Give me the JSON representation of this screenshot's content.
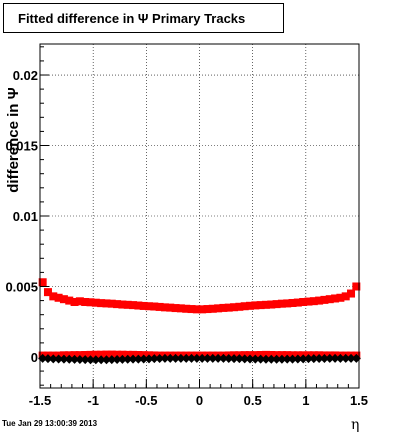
{
  "title": "Fitted difference in  Ψ   Primary Tracks",
  "footer": "Tue Jan 29 13:00:39 2013",
  "chart_data": {
    "type": "scatter",
    "title": "Fitted difference in Ψ Primary Tracks",
    "xlabel": "η",
    "ylabel": "difference in Ψ",
    "xlim": [
      -1.5,
      1.5
    ],
    "ylim": [
      -0.0022,
      0.0222
    ],
    "x_ticks": [
      -1.5,
      -1,
      -0.5,
      0,
      0.5,
      1,
      1.5
    ],
    "x_tick_labels": [
      "-1.5",
      "-1",
      "-0.5",
      "0",
      "0.5",
      "1",
      "1.5"
    ],
    "y_ticks": [
      0,
      0.005,
      0.01,
      0.015,
      0.02
    ],
    "y_tick_labels": [
      "0",
      "0.005",
      "0.01",
      "0.015",
      "0.02"
    ],
    "grid": true,
    "series": [
      {
        "color": "#ff0000",
        "marker": "square",
        "x": [
          -1.475,
          -1.425,
          -1.375,
          -1.325,
          -1.275,
          -1.225,
          -1.175,
          -1.125,
          -1.075,
          -1.025,
          -0.975,
          -0.925,
          -0.875,
          -0.825,
          -0.775,
          -0.725,
          -0.675,
          -0.625,
          -0.575,
          -0.525,
          -0.475,
          -0.425,
          -0.375,
          -0.325,
          -0.275,
          -0.225,
          -0.175,
          -0.125,
          -0.075,
          -0.025,
          0.025,
          0.075,
          0.125,
          0.175,
          0.225,
          0.275,
          0.325,
          0.375,
          0.425,
          0.475,
          0.525,
          0.575,
          0.625,
          0.675,
          0.725,
          0.775,
          0.825,
          0.875,
          0.925,
          0.975,
          1.025,
          1.075,
          1.125,
          1.175,
          1.225,
          1.275,
          1.325,
          1.375,
          1.425,
          1.475
        ],
        "y": [
          0.0053,
          0.0046,
          0.0043,
          0.0042,
          0.0041,
          0.004,
          0.0039,
          0.00395,
          0.0039,
          0.00388,
          0.00385,
          0.00382,
          0.0038,
          0.00378,
          0.00375,
          0.00372,
          0.0037,
          0.00368,
          0.00365,
          0.00362,
          0.0036,
          0.00358,
          0.00355,
          0.00352,
          0.0035,
          0.00347,
          0.00345,
          0.00342,
          0.0034,
          0.00338,
          0.00338,
          0.0034,
          0.00342,
          0.00345,
          0.00348,
          0.0035,
          0.00353,
          0.00356,
          0.0036,
          0.00363,
          0.00366,
          0.00368,
          0.0037,
          0.00372,
          0.00375,
          0.00378,
          0.0038,
          0.00383,
          0.00386,
          0.0039,
          0.00393,
          0.00396,
          0.004,
          0.00405,
          0.0041,
          0.00415,
          0.0042,
          0.0043,
          0.0045,
          0.005
        ]
      },
      {
        "color": "#ff0000",
        "marker": "square",
        "x": [
          -1.475,
          -1.425,
          -1.375,
          -1.325,
          -1.275,
          -1.225,
          -1.175,
          -1.125,
          -1.075,
          -1.025,
          -0.975,
          -0.925,
          -0.875,
          -0.825,
          -0.775,
          -0.725,
          -0.675,
          -0.625,
          -0.575,
          -0.525,
          -0.475,
          -0.425,
          -0.375,
          -0.325,
          -0.275,
          -0.225,
          -0.175,
          -0.125,
          -0.075,
          -0.025,
          0.025,
          0.075,
          0.125,
          0.175,
          0.225,
          0.275,
          0.325,
          0.375,
          0.425,
          0.475,
          0.525,
          0.575,
          0.625,
          0.675,
          0.725,
          0.775,
          0.825,
          0.875,
          0.925,
          0.975,
          1.025,
          1.075,
          1.125,
          1.175,
          1.225,
          1.275,
          1.325,
          1.375,
          1.425,
          1.475
        ],
        "y": [
          0.0001,
          0.0001,
          0.0001,
          0.0001,
          0.00012,
          0.00012,
          0.00013,
          0.00013,
          0.00014,
          0.00015,
          0.00016,
          0.00016,
          0.00017,
          0.00017,
          0.00016,
          0.00016,
          0.00015,
          0.00015,
          0.00014,
          0.00013,
          0.00012,
          0.00011,
          0.0001,
          0.0001,
          0.0001,
          0.0001,
          0.0001,
          0.0001,
          0.0001,
          0.0001,
          0.0001,
          0.0001,
          0.0001,
          0.0001,
          0.0001,
          0.00011,
          0.00012,
          0.00012,
          0.00013,
          0.00013,
          0.00013,
          0.00014,
          0.00015,
          0.00014,
          0.00013,
          0.00013,
          0.00013,
          0.00012,
          0.00012,
          0.00012,
          0.00012,
          0.00012,
          0.00012,
          0.00011,
          0.00011,
          0.00011,
          0.0001,
          0.0001,
          0.0001,
          0.0001
        ]
      },
      {
        "color": "#000000",
        "marker": "diamond",
        "x": [
          -1.475,
          -1.425,
          -1.375,
          -1.325,
          -1.275,
          -1.225,
          -1.175,
          -1.125,
          -1.075,
          -1.025,
          -0.975,
          -0.925,
          -0.875,
          -0.825,
          -0.775,
          -0.725,
          -0.675,
          -0.625,
          -0.575,
          -0.525,
          -0.475,
          -0.425,
          -0.375,
          -0.325,
          -0.275,
          -0.225,
          -0.175,
          -0.125,
          -0.075,
          -0.025,
          0.025,
          0.075,
          0.125,
          0.175,
          0.225,
          0.275,
          0.325,
          0.375,
          0.425,
          0.475,
          0.525,
          0.575,
          0.625,
          0.675,
          0.725,
          0.775,
          0.825,
          0.875,
          0.925,
          0.975,
          1.025,
          1.075,
          1.125,
          1.175,
          1.225,
          1.275,
          1.325,
          1.375,
          1.425,
          1.475
        ],
        "y": [
          -0.0001,
          -0.00012,
          -0.00013,
          -0.00014,
          -0.00015,
          -0.00016,
          -0.00017,
          -0.00018,
          -0.00019,
          -0.0002,
          -0.0002,
          -0.0002,
          -0.0002,
          -0.00019,
          -0.00018,
          -0.00017,
          -0.00016,
          -0.00015,
          -0.00015,
          -0.00014,
          -0.00013,
          -0.00012,
          -0.00011,
          -0.0001,
          -0.0001,
          -0.0001,
          -0.0001,
          -0.0001,
          -0.0001,
          -0.0001,
          -0.0001,
          -0.0001,
          -0.0001,
          -0.0001,
          -0.0001,
          -0.00011,
          -0.00012,
          -0.00012,
          -0.00013,
          -0.00014,
          -0.00015,
          -0.00015,
          -0.00016,
          -0.00016,
          -0.00016,
          -0.00016,
          -0.00015,
          -0.00015,
          -0.00014,
          -0.00013,
          -0.00012,
          -0.00012,
          -0.00011,
          -0.00011,
          -0.0001,
          -0.0001,
          -0.0001,
          -0.0001,
          -0.0001,
          -0.0001
        ]
      }
    ]
  }
}
